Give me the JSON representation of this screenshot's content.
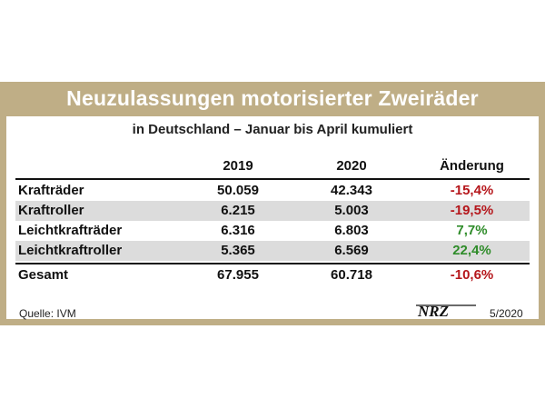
{
  "title": "Neuzulassungen motorisierter Zweiräder",
  "subtitle": "in Deutschland – Januar bis April kumuliert",
  "source": "Quelle: IVM",
  "date": "5/2020",
  "logo_text": "NRZ",
  "colors": {
    "frame": "#bfae86",
    "negative": "#b5161b",
    "positive": "#2f8c2a",
    "shade": "#dcdcdc"
  },
  "chart_data": {
    "type": "table",
    "title": "Neuzulassungen motorisierter Zweiräder",
    "subtitle": "in Deutschland – Januar bis April kumuliert",
    "columns": [
      "",
      "2019",
      "2020",
      "Änderung"
    ],
    "rows": [
      {
        "label": "Krafträder",
        "y2019": "50.059",
        "y2020": "42.343",
        "change": "-15,4%",
        "trend": "neg",
        "shaded": false
      },
      {
        "label": "Kraftroller",
        "y2019": "6.215",
        "y2020": "5.003",
        "change": "-19,5%",
        "trend": "neg",
        "shaded": true
      },
      {
        "label": "Leichtkrafträder",
        "y2019": "6.316",
        "y2020": "6.803",
        "change": "7,7%",
        "trend": "pos",
        "shaded": false
      },
      {
        "label": "Leichtkraftroller",
        "y2019": "5.365",
        "y2020": "6.569",
        "change": "22,4%",
        "trend": "pos",
        "shaded": true
      }
    ],
    "total": {
      "label": "Gesamt",
      "y2019": "67.955",
      "y2020": "60.718",
      "change": "-10,6%",
      "trend": "neg"
    }
  }
}
